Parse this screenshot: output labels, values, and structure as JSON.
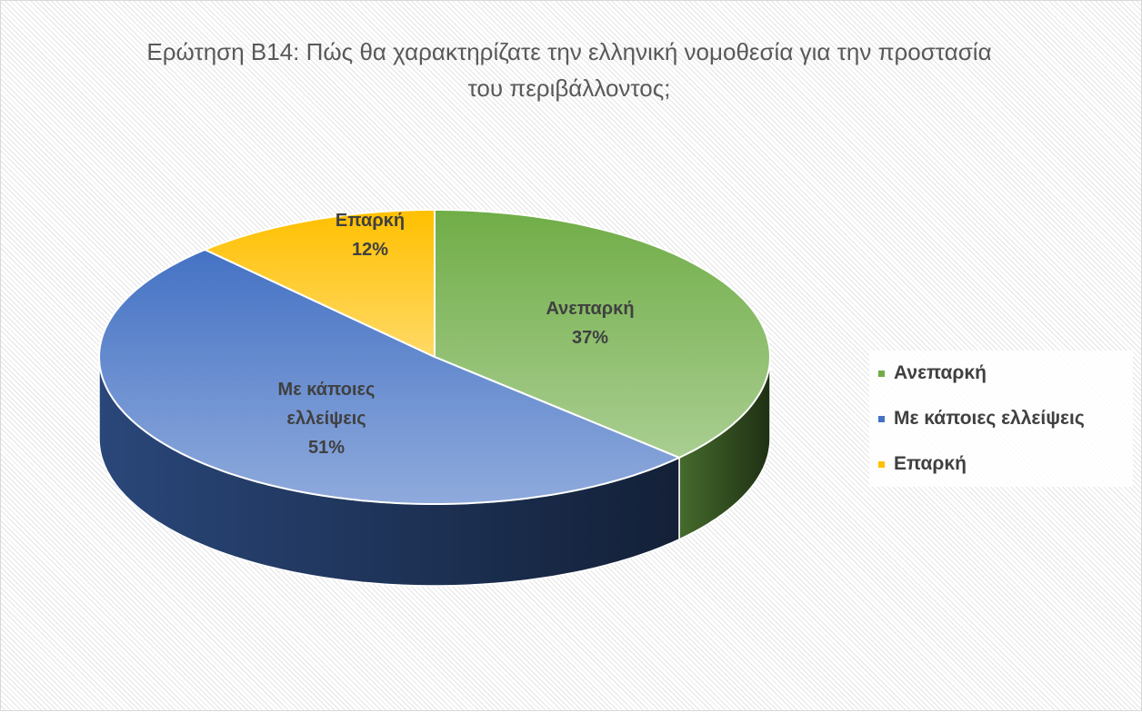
{
  "chart_data": {
    "type": "pie3d",
    "title": "Ερώτηση Β14: Πώς θα χαρακτηρίζατε την ελληνική νομοθεσία για την προστασία του περιβάλλοντος;",
    "categories": [
      "Ανεπαρκή",
      "Με κάποιες ελλείψεις",
      "Επαρκή"
    ],
    "values": [
      37,
      51,
      12
    ],
    "value_labels": [
      "37%",
      "51%",
      "12%"
    ],
    "colors": [
      "#70ad47",
      "#4472c4",
      "#ffc000"
    ],
    "legend": "right"
  }
}
